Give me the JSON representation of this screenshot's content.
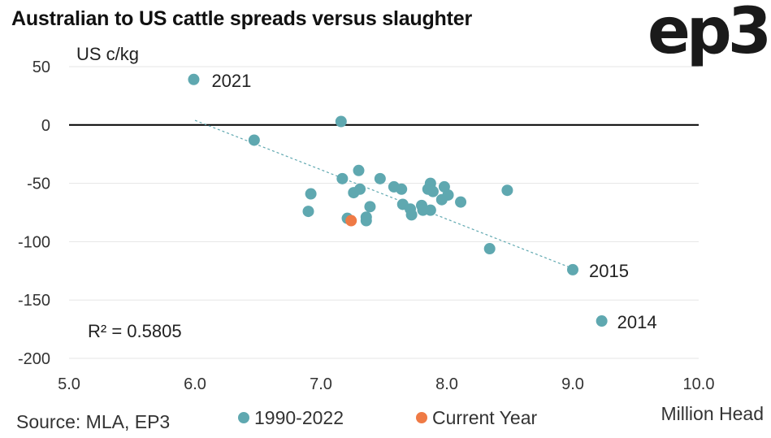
{
  "header": {
    "title": "Australian to US cattle spreads versus slaughter",
    "logo_text": "ep3"
  },
  "footer": {
    "source": "Source: MLA, EP3"
  },
  "chart_data": {
    "type": "scatter",
    "title": "Australian to US cattle spreads versus slaughter",
    "xlabel": "Million Head",
    "ylabel": "US c/kg",
    "xlim": [
      5.0,
      10.0
    ],
    "ylim": [
      -200,
      50
    ],
    "x_ticks": [
      "5.0",
      "6.0",
      "7.0",
      "8.0",
      "9.0",
      "10.0"
    ],
    "y_ticks": [
      "50",
      "0",
      "-50",
      "-100",
      "-150",
      "-200"
    ],
    "grid": true,
    "legend_position": "bottom",
    "r_squared_label": "R² = 0.5805",
    "series": [
      {
        "name": "1990-2022",
        "color": "#5fa8b0",
        "points": [
          {
            "x": 5.99,
            "y": 39,
            "label": "2021"
          },
          {
            "x": 6.47,
            "y": -13
          },
          {
            "x": 7.16,
            "y": 3
          },
          {
            "x": 7.17,
            "y": -46
          },
          {
            "x": 6.92,
            "y": -59
          },
          {
            "x": 6.9,
            "y": -74
          },
          {
            "x": 7.21,
            "y": -80
          },
          {
            "x": 7.26,
            "y": -58
          },
          {
            "x": 7.3,
            "y": -39
          },
          {
            "x": 7.31,
            "y": -55
          },
          {
            "x": 7.36,
            "y": -79
          },
          {
            "x": 7.36,
            "y": -82
          },
          {
            "x": 7.39,
            "y": -70
          },
          {
            "x": 7.47,
            "y": -46
          },
          {
            "x": 7.58,
            "y": -53
          },
          {
            "x": 7.64,
            "y": -55
          },
          {
            "x": 7.65,
            "y": -68
          },
          {
            "x": 7.71,
            "y": -72
          },
          {
            "x": 7.72,
            "y": -77
          },
          {
            "x": 7.8,
            "y": -69
          },
          {
            "x": 7.81,
            "y": -73
          },
          {
            "x": 7.85,
            "y": -55
          },
          {
            "x": 7.87,
            "y": -50
          },
          {
            "x": 7.87,
            "y": -73
          },
          {
            "x": 7.89,
            "y": -57
          },
          {
            "x": 7.96,
            "y": -64
          },
          {
            "x": 7.98,
            "y": -53
          },
          {
            "x": 8.01,
            "y": -60
          },
          {
            "x": 8.11,
            "y": -66
          },
          {
            "x": 8.34,
            "y": -106
          },
          {
            "x": 8.48,
            "y": -56
          },
          {
            "x": 9.0,
            "y": -124,
            "label": "2015"
          },
          {
            "x": 9.23,
            "y": -168,
            "label": "2014"
          }
        ]
      },
      {
        "name": "Current Year",
        "color": "#ef7a45",
        "points": [
          {
            "x": 7.24,
            "y": -82
          }
        ]
      }
    ],
    "trendline": {
      "style": "dashed",
      "color": "#5fa8b0",
      "x": [
        6.0,
        9.0
      ],
      "y": [
        4,
        -123
      ]
    }
  }
}
